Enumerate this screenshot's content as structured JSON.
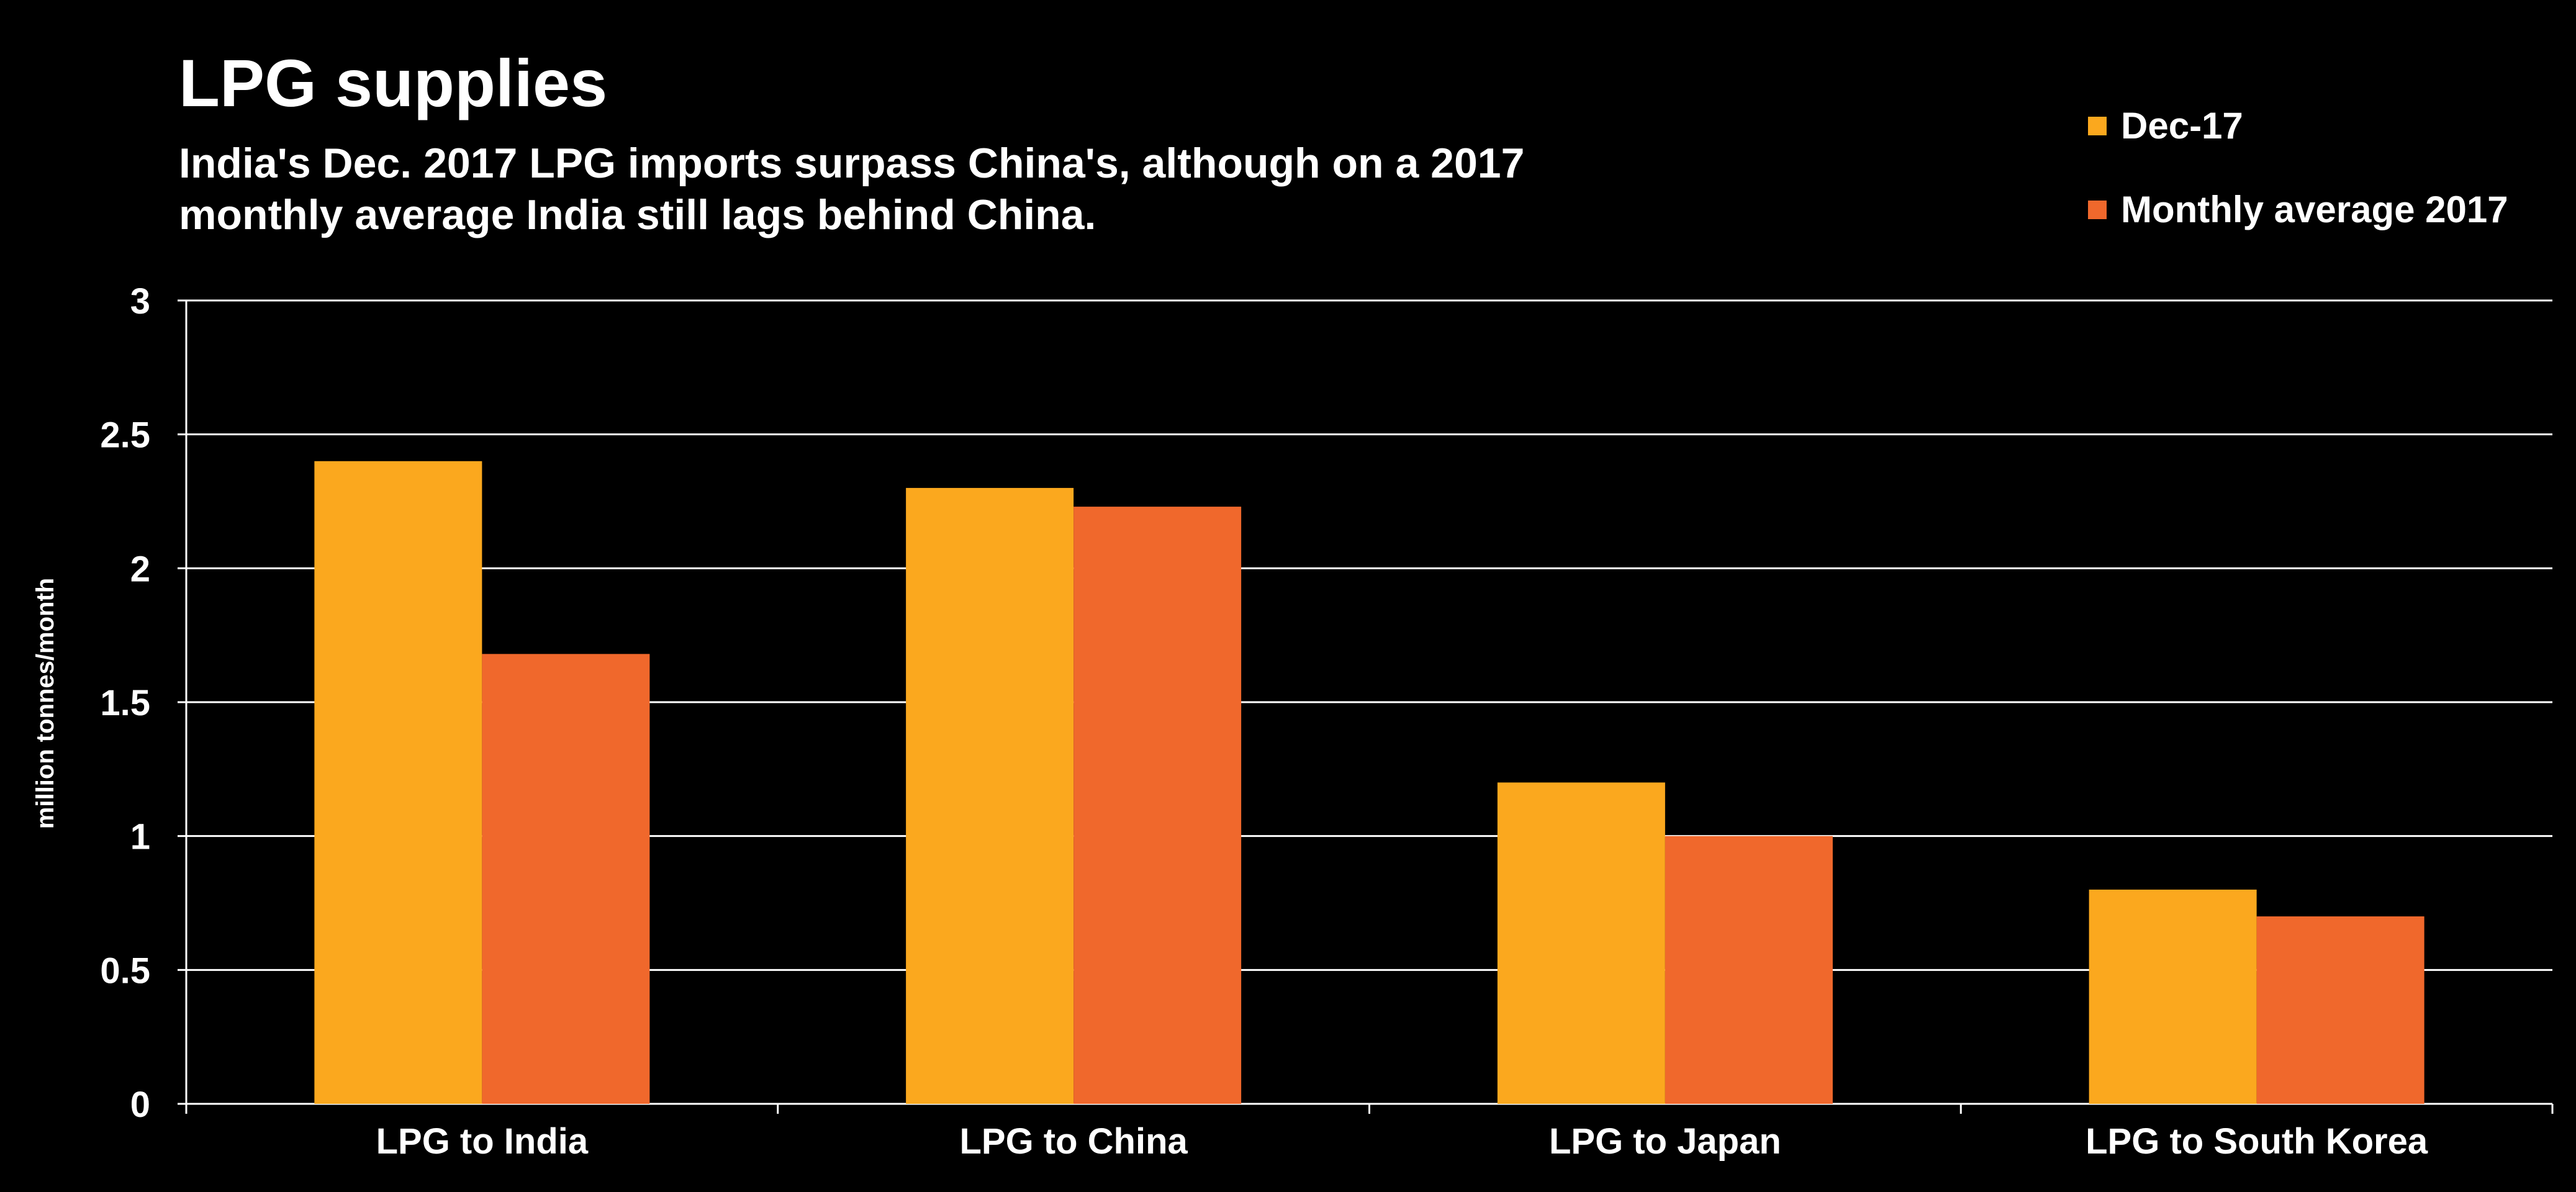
{
  "chart_data": {
    "type": "bar",
    "title": "LPG supplies",
    "subtitle_lines": [
      "India's Dec. 2017 LPG imports surpass China's, although on a 2017",
      "monthly average India still lags behind China."
    ],
    "ylabel": "million tonnes/month",
    "xlabel": "",
    "ylim": [
      0,
      3
    ],
    "yticks": [
      0,
      0.5,
      1,
      1.5,
      2,
      2.5,
      3
    ],
    "ytick_labels": [
      "0",
      "0.5",
      "1",
      "1.5",
      "2",
      "2.5",
      "3"
    ],
    "grid": true,
    "legend_position": "top-right",
    "categories": [
      "LPG to India",
      "LPG to China",
      "LPG to Japan",
      "LPG to South Korea"
    ],
    "series": [
      {
        "name": "Dec-17",
        "color": "#FBA81E",
        "values": [
          2.4,
          2.3,
          1.2,
          0.8
        ]
      },
      {
        "name": "Monthly average 2017",
        "color": "#F0682C",
        "values": [
          1.68,
          2.23,
          1.0,
          0.7
        ]
      }
    ]
  }
}
